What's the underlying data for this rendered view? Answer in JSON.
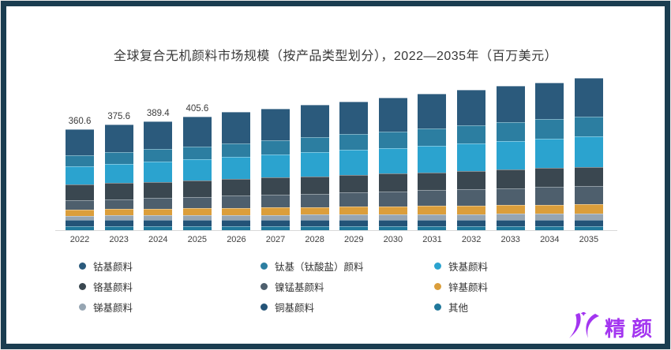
{
  "title": "全球复合无机颜料市场规模（按产品类型划分），2022—2035年（百万美元）",
  "frame": {
    "border_color": "#1A3D50",
    "outer_edge_color": "#ececec"
  },
  "watermark": {
    "text": "精颜",
    "mark": "jc-logo",
    "color": "#A335F0"
  },
  "chart_data": {
    "type": "bar",
    "stacked": true,
    "title": "全球复合无机颜料市场规模（按产品类型划分），2022—2035年（百万美元）",
    "unit": "百万美元",
    "grid": false,
    "y_axis_visible": false,
    "baseline_color": "#d9d9d9",
    "tick_label_color": "#404040",
    "categories": [
      "2022",
      "2023",
      "2024",
      "2025",
      "2026",
      "2027",
      "2028",
      "2029",
      "2030",
      "2031",
      "2032",
      "2033",
      "2034",
      "2035"
    ],
    "totals": [
      360.6,
      375.6,
      389.4,
      405.6,
      421.4,
      434.3,
      446.7,
      459.7,
      472.9,
      487.0,
      500.2,
      513.2,
      525.6,
      543.3
    ],
    "bar_total_labels": [
      "360.6",
      "375.6",
      "389.4",
      "405.6",
      "",
      "",
      "",
      "",
      "",
      "",
      "",
      "",
      "",
      ""
    ],
    "series": [
      {
        "name": "其他",
        "color": "#20789B",
        "values": [
          14.0,
          13.9,
          13.8,
          13.8,
          13.7,
          13.6,
          13.5,
          13.5,
          13.4,
          13.3,
          13.2,
          13.2,
          13.1,
          13.0
        ]
      },
      {
        "name": "铜基颜料",
        "color": "#235377",
        "values": [
          22.0,
          22.1,
          22.2,
          22.2,
          22.3,
          22.4,
          22.5,
          22.5,
          22.6,
          22.7,
          22.8,
          22.8,
          22.9,
          23.0
        ]
      },
      {
        "name": "锑基颜料",
        "color": "#96A5B2",
        "values": [
          16.0,
          16.5,
          17.1,
          17.6,
          18.2,
          18.7,
          19.2,
          19.8,
          20.3,
          20.8,
          21.4,
          21.9,
          22.5,
          23.0
        ]
      },
      {
        "name": "锌基颜料",
        "color": "#DB9E3B",
        "values": [
          22.0,
          22.8,
          23.7,
          24.5,
          25.4,
          26.2,
          27.1,
          27.9,
          28.8,
          29.6,
          30.5,
          31.3,
          32.2,
          33.0
        ]
      },
      {
        "name": "镍锰基颜料",
        "color": "#4E5F6D",
        "values": [
          33.0,
          35.5,
          38.1,
          40.6,
          43.1,
          45.7,
          48.2,
          50.7,
          53.3,
          55.8,
          58.4,
          60.9,
          63.5,
          66.0
        ]
      },
      {
        "name": "铬基颜料",
        "color": "#3A4750",
        "values": [
          56.0,
          56.9,
          57.8,
          58.8,
          59.7,
          60.6,
          61.5,
          62.5,
          63.4,
          64.3,
          65.2,
          66.2,
          67.1,
          68.0
        ]
      },
      {
        "name": "铁基颜料",
        "color": "#2BA3CF",
        "values": [
          66.0,
          69.2,
          72.5,
          75.7,
          78.9,
          82.2,
          85.4,
          88.6,
          91.8,
          95.1,
          98.3,
          101.5,
          104.8,
          108.0
        ]
      },
      {
        "name": "钛基（钛酸盐）颜料",
        "color": "#2C7EA1",
        "values": [
          38.0,
          40.6,
          43.2,
          45.8,
          48.5,
          51.1,
          53.7,
          56.3,
          58.9,
          61.5,
          64.2,
          66.8,
          69.4,
          72.0
        ]
      },
      {
        "name": "钴基颜料",
        "color": "#2B5A7C",
        "values": [
          93.6,
          98.1,
          101.0,
          106.6,
          111.6,
          113.8,
          115.6,
          117.9,
          120.4,
          123.9,
          126.2,
          128.6,
          130.1,
          137.3
        ]
      }
    ],
    "stack_order_note": "series listed bottom-to-top",
    "legend_position": "bottom",
    "legend_columns": [
      [
        "钴基颜料",
        "铬基颜料",
        "锑基颜料"
      ],
      [
        "钛基（钛酸盐）颜料",
        "镍锰基颜料",
        "铜基颜料"
      ],
      [
        "铁基颜料",
        "锌基颜料",
        "其他"
      ]
    ]
  }
}
